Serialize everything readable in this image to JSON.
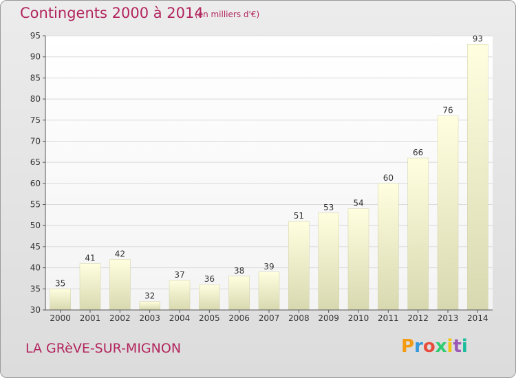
{
  "header": {
    "title": "Contingents 2000 à 2014",
    "subtitle": "(en milliers d'€)"
  },
  "footer": {
    "place": "LA GRèVE-SUR-MIGNON",
    "logo_letters": [
      "P",
      "r",
      "o",
      "x",
      "i",
      "t",
      "i"
    ],
    "logo_colors": [
      "#f39c12",
      "#3498db",
      "#e74c3c",
      "#2ecc71",
      "#f1c40f",
      "#9b59b6",
      "#1abc9c"
    ]
  },
  "chart_data": {
    "type": "bar",
    "categories": [
      "2000",
      "2001",
      "2002",
      "2003",
      "2004",
      "2005",
      "2006",
      "2007",
      "2008",
      "2009",
      "2010",
      "2011",
      "2012",
      "2013",
      "2014"
    ],
    "values": [
      35,
      41,
      42,
      32,
      37,
      36,
      38,
      39,
      51,
      53,
      54,
      60,
      66,
      76,
      93
    ],
    "title": "Contingents 2000 à 2014",
    "ylim": [
      30,
      95
    ],
    "yticks": [
      30,
      35,
      40,
      45,
      50,
      55,
      60,
      65,
      70,
      75,
      80,
      85,
      90,
      95
    ],
    "grid": true,
    "bar_color_top": "#ffffe0",
    "bar_color_bottom": "#d8d8b0"
  }
}
